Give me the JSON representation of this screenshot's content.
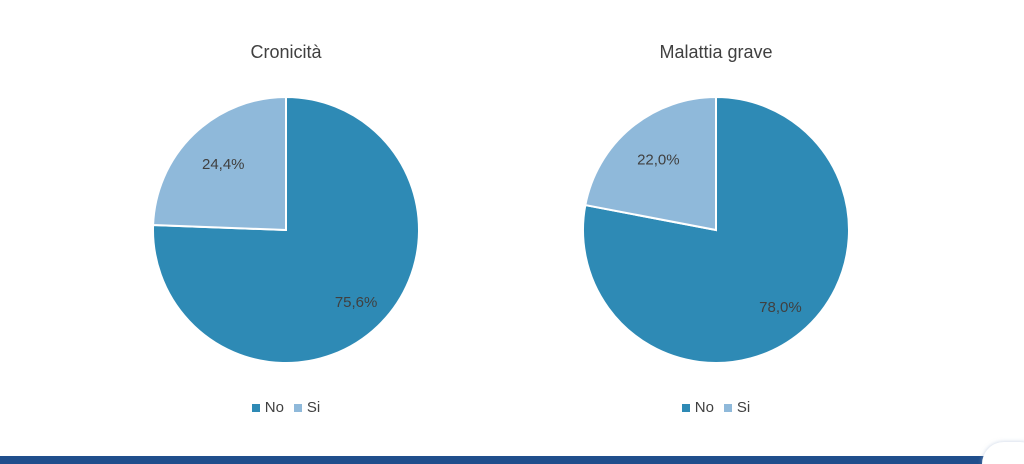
{
  "colors": {
    "no": "#2e8ab5",
    "si": "#8fb9da",
    "text": "#404040",
    "bar": "#1f4e8c"
  },
  "chart_data": [
    {
      "type": "pie",
      "title": "Cronicità",
      "categories": [
        "No",
        "Si"
      ],
      "values": [
        75.6,
        24.4
      ],
      "labels": [
        "75,6%",
        "24,4%"
      ],
      "legend": {
        "position": "bottom",
        "entries": [
          "No",
          "Si"
        ]
      }
    },
    {
      "type": "pie",
      "title": "Malattia grave",
      "categories": [
        "No",
        "Si"
      ],
      "values": [
        78.0,
        22.0
      ],
      "labels": [
        "78,0%",
        "22,0%"
      ],
      "legend": {
        "position": "bottom",
        "entries": [
          "No",
          "Si"
        ]
      }
    }
  ]
}
